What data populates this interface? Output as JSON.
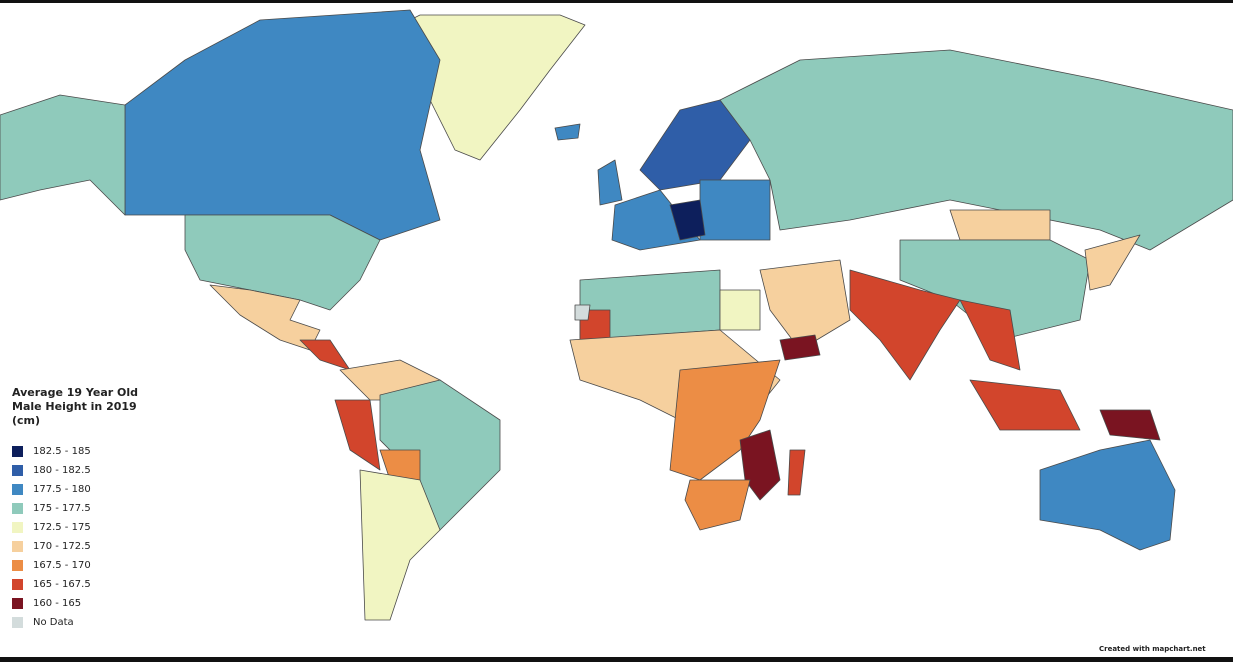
{
  "legend": {
    "title": "Average 19 Year Old Male Height in 2019 (cm)",
    "items": [
      {
        "label": "182.5 - 185",
        "color": "#0d1f5c"
      },
      {
        "label": "180 - 182.5",
        "color": "#2f5ea8"
      },
      {
        "label": "177.5 - 180",
        "color": "#3f88c2"
      },
      {
        "label": "175 - 177.5",
        "color": "#8fcabb"
      },
      {
        "label": "172.5 - 175",
        "color": "#f1f5c2"
      },
      {
        "label": "170 - 172.5",
        "color": "#f6d09e"
      },
      {
        "label": "167.5 - 170",
        "color": "#ec8d45"
      },
      {
        "label": "165 - 167.5",
        "color": "#d2452c"
      },
      {
        "label": "160 - 165",
        "color": "#7a1421"
      },
      {
        "label": "No Data",
        "color": "#d3dcdc"
      }
    ]
  },
  "credit": "Created with mapchart.net"
}
